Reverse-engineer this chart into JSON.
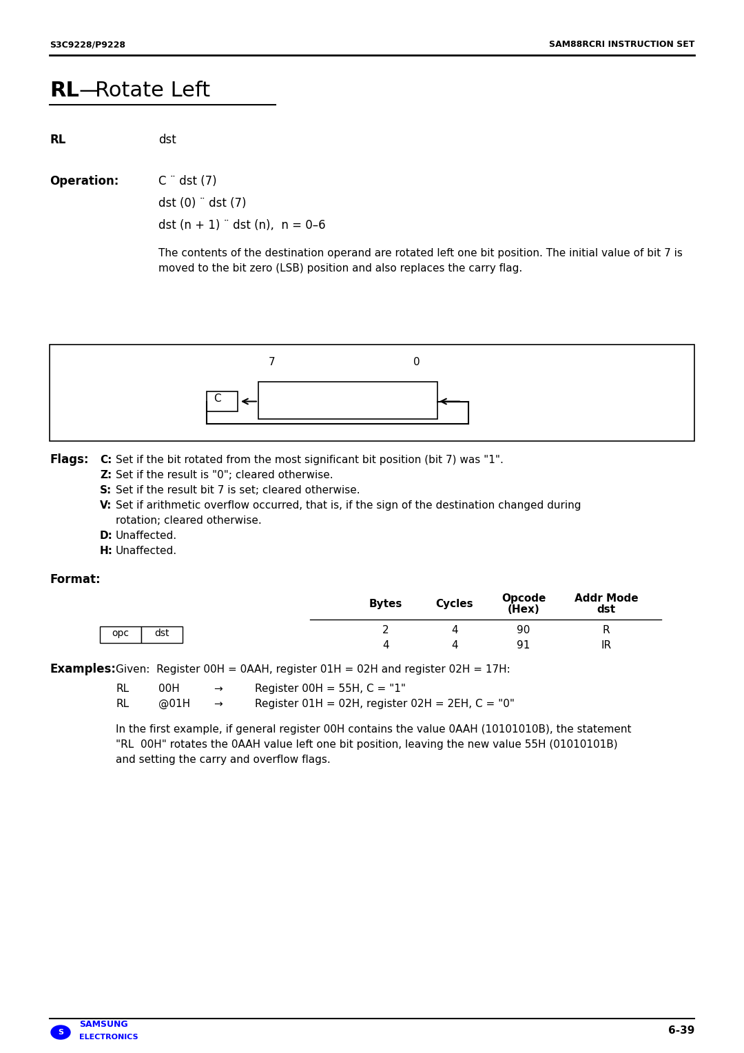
{
  "header_left": "S3C9228/P9228",
  "header_right": "SAM88RCRI INSTRUCTION SET",
  "title_bold": "RL",
  "title_dash": "—",
  "title_rest": "Rotate Left",
  "rl_label": "RL",
  "rl_value": "dst",
  "op_label": "Operation:",
  "op_lines": [
    "C ¨ dst (7)",
    "dst (0) ¨ dst (7)",
    "dst (n + 1) ¨ dst (n),  n = 0–6"
  ],
  "op_desc": "The contents of the destination operand are rotated left one bit position. The initial value of bit 7 is\nmoved to the bit zero (LSB) position and also replaces the carry flag.",
  "flags_label": "Flags:",
  "flags": [
    [
      "C:",
      "Set if the bit rotated from the most significant bit position (bit 7) was \"1\"."
    ],
    [
      "Z:",
      "Set if the result is \"0\"; cleared otherwise."
    ],
    [
      "S:",
      "Set if the result bit 7 is set; cleared otherwise."
    ],
    [
      "V:",
      "Set if arithmetic overflow occurred, that is, if the sign of the destination changed during\n        rotation; cleared otherwise."
    ],
    [
      "D:",
      "Unaffected."
    ],
    [
      "H:",
      "Unaffected."
    ]
  ],
  "format_label": "Format:",
  "table_headers": [
    "Bytes",
    "Cycles",
    "Opcode\n(Hex)",
    "Addr Mode\ndst"
  ],
  "table_rows": [
    [
      "2",
      "4",
      "90",
      "R"
    ],
    [
      "4",
      "4",
      "91",
      "IR"
    ]
  ],
  "opc_label": "opc",
  "dst_label": "dst",
  "examples_label": "Examples:",
  "examples_intro": "Given:  Register 00H = 0AAH, register 01H = 02H and register 02H = 17H:",
  "example_rows": [
    [
      "RL",
      "00H",
      "→",
      "Register 00H = 55H, C = \"1\""
    ],
    [
      "RL",
      "@01H",
      "→",
      "Register 01H = 02H, register 02H = 2EH, C = \"0\""
    ]
  ],
  "example_note": "In the first example, if general register 00H contains the value 0AAH (10101010B), the statement\n\"RL  00H\" rotates the 0AAH value left one bit position, leaving the new value 55H (01010101B)\nand setting the carry and overflow flags.",
  "footer_page": "6-39",
  "samsung_color": "#0000FF",
  "bg_color": "#FFFFFF",
  "text_color": "#000000"
}
